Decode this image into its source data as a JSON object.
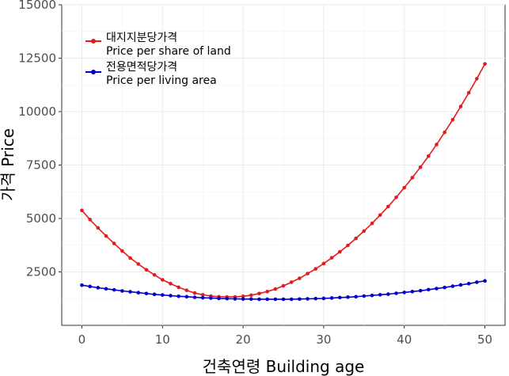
{
  "chart_data": {
    "type": "line",
    "xlabel": "건축연령 Building age",
    "ylabel": "가격 Price",
    "xlim": [
      -2.5,
      52.5
    ],
    "ylim": [
      0,
      15000
    ],
    "x_ticks": [
      0,
      10,
      20,
      30,
      40,
      50
    ],
    "y_ticks": [
      2500,
      5000,
      7500,
      10000,
      12500,
      15000
    ],
    "grid": true,
    "legend_position": "top-left",
    "series": [
      {
        "name": "대지지분당가격",
        "name_en": "Price per share of land",
        "color": "#e41a1c",
        "x": [
          0,
          1,
          2,
          3,
          4,
          5,
          6,
          7,
          8,
          9,
          10,
          11,
          12,
          13,
          14,
          15,
          16,
          17,
          18,
          19,
          20,
          21,
          22,
          23,
          24,
          25,
          26,
          27,
          28,
          29,
          30,
          31,
          32,
          33,
          34,
          35,
          36,
          37,
          38,
          39,
          40,
          41,
          42,
          43,
          44,
          45,
          46,
          47,
          48,
          49,
          50
        ],
        "values": [
          5380,
          4950,
          4560,
          4180,
          3830,
          3480,
          3150,
          2870,
          2600,
          2360,
          2130,
          1950,
          1780,
          1640,
          1510,
          1430,
          1370,
          1340,
          1330,
          1330,
          1360,
          1410,
          1490,
          1580,
          1700,
          1850,
          2020,
          2200,
          2420,
          2640,
          2890,
          3160,
          3440,
          3740,
          4070,
          4410,
          4770,
          5160,
          5560,
          5990,
          6440,
          6910,
          7400,
          7920,
          8460,
          9030,
          9620,
          10240,
          10880,
          11540,
          12230
        ]
      },
      {
        "name": "전용면적당가격",
        "name_en": "Price per living area",
        "color": "#0000cd",
        "x": [
          0,
          1,
          2,
          3,
          4,
          5,
          6,
          7,
          8,
          9,
          10,
          11,
          12,
          13,
          14,
          15,
          16,
          17,
          18,
          19,
          20,
          21,
          22,
          23,
          24,
          25,
          26,
          27,
          28,
          29,
          30,
          31,
          32,
          33,
          34,
          35,
          36,
          37,
          38,
          39,
          40,
          41,
          42,
          43,
          44,
          45,
          46,
          47,
          48,
          49,
          50
        ],
        "values": [
          1880,
          1820,
          1760,
          1710,
          1660,
          1610,
          1570,
          1530,
          1490,
          1450,
          1420,
          1390,
          1360,
          1340,
          1310,
          1290,
          1280,
          1260,
          1250,
          1240,
          1230,
          1230,
          1220,
          1220,
          1220,
          1220,
          1220,
          1230,
          1240,
          1250,
          1260,
          1280,
          1300,
          1320,
          1340,
          1370,
          1400,
          1430,
          1460,
          1500,
          1540,
          1580,
          1620,
          1670,
          1720,
          1770,
          1830,
          1890,
          1950,
          2020,
          2080
        ]
      }
    ]
  }
}
